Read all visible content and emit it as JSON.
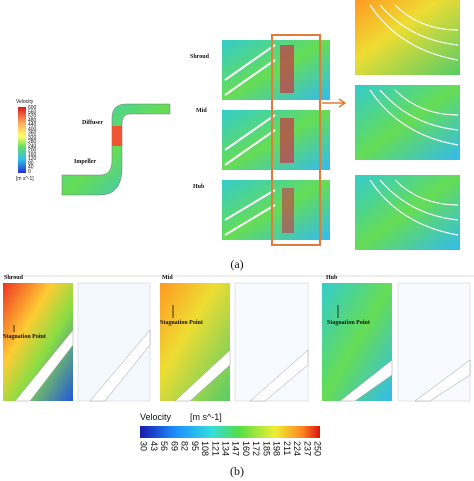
{
  "panel_a": {
    "legend": {
      "title": "Velocity",
      "ticks": [
        600,
        560,
        520,
        480,
        440,
        400,
        360,
        320,
        280,
        240,
        200,
        160,
        120,
        80,
        40,
        0
      ],
      "unit": "[m s^-1]"
    },
    "labels": {
      "diffuser": "Diffuser",
      "impeller": "Impeller",
      "shroud": "Shroud",
      "mid": "Mid",
      "hub": "Hub"
    },
    "caption": "(a)"
  },
  "panel_b": {
    "panels": [
      {
        "title": "Shroud",
        "annotation": "Stagnation Point"
      },
      {
        "title": "Mid",
        "annotation": "Stagnation Point"
      },
      {
        "title": "Hub",
        "annotation": "Stagnation Point"
      }
    ],
    "legend": {
      "title": "Velocity",
      "unit": "[m s^-1]",
      "ticks": [
        30,
        43,
        56,
        69,
        82,
        95,
        108,
        121,
        134,
        147,
        160,
        172,
        185,
        198,
        211,
        224,
        237,
        250
      ]
    },
    "caption": "(b)"
  }
}
